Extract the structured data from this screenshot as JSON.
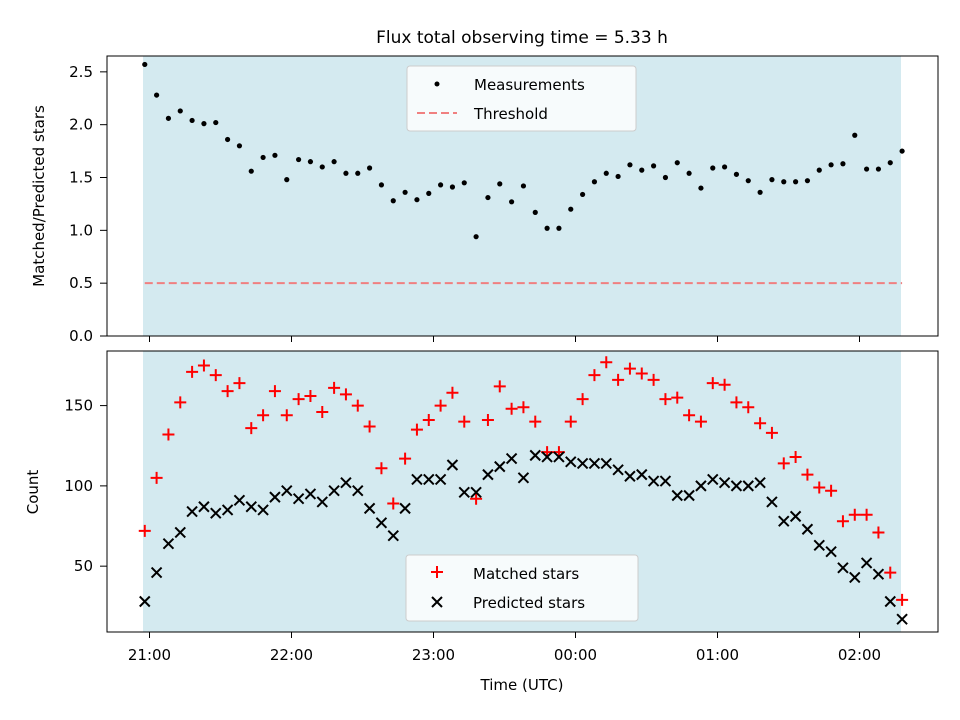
{
  "title": "Flux total observing time = 5.33 h",
  "xlabel": "Time (UTC)",
  "x_ticks": [
    "21:00",
    "22:00",
    "23:00",
    "00:00",
    "01:00",
    "02:00"
  ],
  "colors": {
    "background": "#d4eaf0",
    "measurement": "#000000",
    "threshold": "#f08080",
    "matched": "#ff0000",
    "predicted": "#000000"
  },
  "chart_data": [
    {
      "type": "scatter",
      "ylabel": "Matched/Predicted stars",
      "ylim": [
        0,
        2.65
      ],
      "yticks": [
        "0.0",
        "0.5",
        "1.0",
        "1.5",
        "2.0",
        "2.5"
      ],
      "legend": {
        "placement": "upper center",
        "entries": [
          "Measurements",
          "Threshold"
        ]
      },
      "threshold": {
        "name": "Threshold",
        "value": 0.5,
        "x_range": [
          "20:58",
          "02:18"
        ]
      },
      "series": [
        {
          "name": "Measurements",
          "x": [
            "20:58",
            "21:03",
            "21:08",
            "21:13",
            "21:18",
            "21:23",
            "21:28",
            "21:33",
            "21:38",
            "21:43",
            "21:48",
            "21:53",
            "21:58",
            "22:03",
            "22:08",
            "22:13",
            "22:18",
            "22:23",
            "22:28",
            "22:33",
            "22:38",
            "22:43",
            "22:48",
            "22:53",
            "22:58",
            "23:03",
            "23:08",
            "23:13",
            "23:18",
            "23:23",
            "23:28",
            "23:33",
            "23:38",
            "23:43",
            "23:48",
            "23:53",
            "23:58",
            "00:03",
            "00:08",
            "00:13",
            "00:18",
            "00:23",
            "00:28",
            "00:33",
            "00:38",
            "00:43",
            "00:48",
            "00:53",
            "00:58",
            "01:03",
            "01:08",
            "01:13",
            "01:18",
            "01:23",
            "01:28",
            "01:33",
            "01:38",
            "01:43",
            "01:48",
            "01:53",
            "01:58",
            "02:03",
            "02:08",
            "02:13",
            "02:18"
          ],
          "values": [
            2.57,
            2.28,
            2.06,
            2.13,
            2.04,
            2.01,
            2.02,
            1.86,
            1.8,
            1.56,
            1.69,
            1.71,
            1.48,
            1.67,
            1.65,
            1.6,
            1.65,
            1.54,
            1.54,
            1.59,
            1.43,
            1.28,
            1.36,
            1.29,
            1.35,
            1.43,
            1.41,
            1.45,
            0.94,
            1.31,
            1.44,
            1.27,
            1.42,
            1.17,
            1.02,
            1.02,
            1.2,
            1.34,
            1.46,
            1.54,
            1.51,
            1.62,
            1.57,
            1.61,
            1.5,
            1.64,
            1.54,
            1.4,
            1.59,
            1.6,
            1.53,
            1.47,
            1.36,
            1.48,
            1.46,
            1.46,
            1.47,
            1.57,
            1.62,
            1.63,
            1.9,
            1.58,
            1.58,
            1.64,
            1.75
          ]
        }
      ]
    },
    {
      "type": "scatter",
      "ylabel": "Count",
      "ylim": [
        9,
        184
      ],
      "yticks": [
        "50",
        "100",
        "150"
      ],
      "legend": {
        "placement": "lower center",
        "entries": [
          "Matched stars",
          "Predicted stars"
        ]
      },
      "series": [
        {
          "name": "Matched stars",
          "x": [
            "20:58",
            "21:03",
            "21:08",
            "21:13",
            "21:18",
            "21:23",
            "21:28",
            "21:33",
            "21:38",
            "21:43",
            "21:48",
            "21:53",
            "21:58",
            "22:03",
            "22:08",
            "22:13",
            "22:18",
            "22:23",
            "22:28",
            "22:33",
            "22:38",
            "22:43",
            "22:48",
            "22:53",
            "22:58",
            "23:03",
            "23:08",
            "23:13",
            "23:18",
            "23:23",
            "23:28",
            "23:33",
            "23:38",
            "23:43",
            "23:48",
            "23:53",
            "23:58",
            "00:03",
            "00:08",
            "00:13",
            "00:18",
            "00:23",
            "00:28",
            "00:33",
            "00:38",
            "00:43",
            "00:48",
            "00:53",
            "00:58",
            "01:03",
            "01:08",
            "01:13",
            "01:18",
            "01:23",
            "01:28",
            "01:33",
            "01:38",
            "01:43",
            "01:48",
            "01:53",
            "01:58",
            "02:03",
            "02:08",
            "02:13",
            "02:18"
          ],
          "values": [
            72,
            105,
            132,
            152,
            171,
            175,
            169,
            159,
            164,
            136,
            144,
            159,
            144,
            154,
            156,
            146,
            161,
            157,
            150,
            137,
            111,
            89,
            117,
            135,
            141,
            150,
            158,
            140,
            92,
            141,
            162,
            148,
            149,
            140,
            121,
            121,
            140,
            154,
            169,
            177,
            166,
            173,
            170,
            166,
            154,
            155,
            144,
            140,
            164,
            163,
            152,
            149,
            139,
            133,
            114,
            118,
            107,
            99,
            97,
            78,
            82,
            82,
            71,
            46,
            29
          ]
        },
        {
          "name": "Predicted stars",
          "x": [
            "20:58",
            "21:03",
            "21:08",
            "21:13",
            "21:18",
            "21:23",
            "21:28",
            "21:33",
            "21:38",
            "21:43",
            "21:48",
            "21:53",
            "21:58",
            "22:03",
            "22:08",
            "22:13",
            "22:18",
            "22:23",
            "22:28",
            "22:33",
            "22:38",
            "22:43",
            "22:48",
            "22:53",
            "22:58",
            "23:03",
            "23:08",
            "23:13",
            "23:18",
            "23:23",
            "23:28",
            "23:33",
            "23:38",
            "23:43",
            "23:48",
            "23:53",
            "23:58",
            "00:03",
            "00:08",
            "00:13",
            "00:18",
            "00:23",
            "00:28",
            "00:33",
            "00:38",
            "00:43",
            "00:48",
            "00:53",
            "00:58",
            "01:03",
            "01:08",
            "01:13",
            "01:18",
            "01:23",
            "01:28",
            "01:33",
            "01:38",
            "01:43",
            "01:48",
            "01:53",
            "01:58",
            "02:03",
            "02:08",
            "02:13",
            "02:18"
          ],
          "values": [
            28,
            46,
            64,
            71,
            84,
            87,
            83,
            85,
            91,
            87,
            85,
            93,
            97,
            92,
            95,
            90,
            97,
            102,
            97,
            86,
            77,
            69,
            86,
            104,
            104,
            104,
            113,
            96,
            96,
            107,
            112,
            117,
            105,
            119,
            118,
            118,
            115,
            114,
            114,
            114,
            110,
            106,
            107,
            103,
            103,
            94,
            94,
            100,
            104,
            102,
            100,
            100,
            102,
            90,
            78,
            81,
            73,
            63,
            59,
            49,
            43,
            52,
            45,
            28,
            17
          ]
        }
      ]
    }
  ]
}
